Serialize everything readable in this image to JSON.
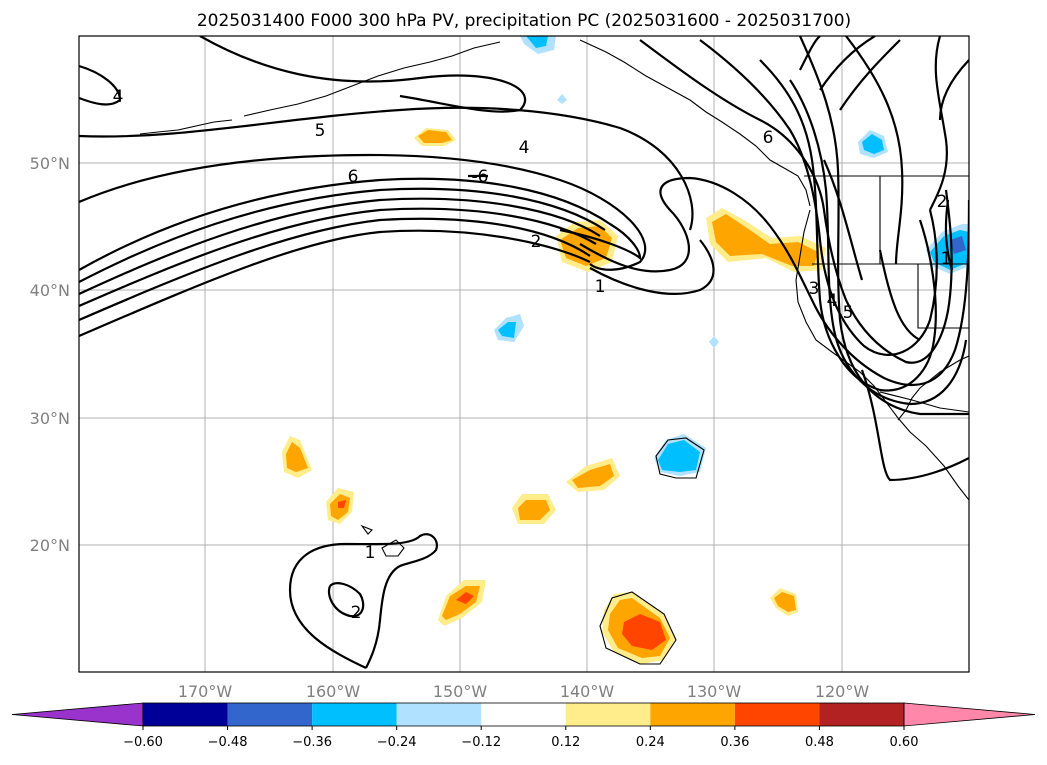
{
  "title": "2025031400 F000 300 hPa PV, precipitation PC (2025031600 - 2025031700)",
  "map": {
    "type": "contour_map",
    "projection": "lat-lon",
    "lon_range": [
      -180,
      -110
    ],
    "lat_range": [
      10,
      60
    ],
    "gridlines": true,
    "lat_ticks": [
      {
        "value": 50,
        "label": "50°N"
      },
      {
        "value": 40,
        "label": "40°N"
      },
      {
        "value": 30,
        "label": "30°N"
      },
      {
        "value": 20,
        "label": "20°N"
      }
    ],
    "lon_ticks": [
      {
        "value": -170,
        "label": "170°W"
      },
      {
        "value": -160,
        "label": "160°W"
      },
      {
        "value": -150,
        "label": "150°W"
      },
      {
        "value": -140,
        "label": "140°W"
      },
      {
        "value": -130,
        "label": "130°W"
      },
      {
        "value": -120,
        "label": "120°W"
      }
    ],
    "pv_contour_labels": [
      "4",
      "5",
      "4",
      "6",
      "-6",
      "2",
      "1",
      "6",
      "2",
      "1",
      "3",
      "4",
      "5",
      "1",
      "2"
    ]
  },
  "colorbar": {
    "extend": "both",
    "levels": [
      "−0.60",
      "−0.48",
      "−0.36",
      "−0.24",
      "−0.12",
      "0.12",
      "0.24",
      "0.36",
      "0.48",
      "0.60"
    ],
    "colors": [
      "#9933cc",
      "#000099",
      "#3366cc",
      "#00bfff",
      "#b0e2ff",
      "#ffffff",
      "#ffec8b",
      "#ffa500",
      "#ff4500",
      "#b22222",
      "#ff88aa"
    ]
  }
}
